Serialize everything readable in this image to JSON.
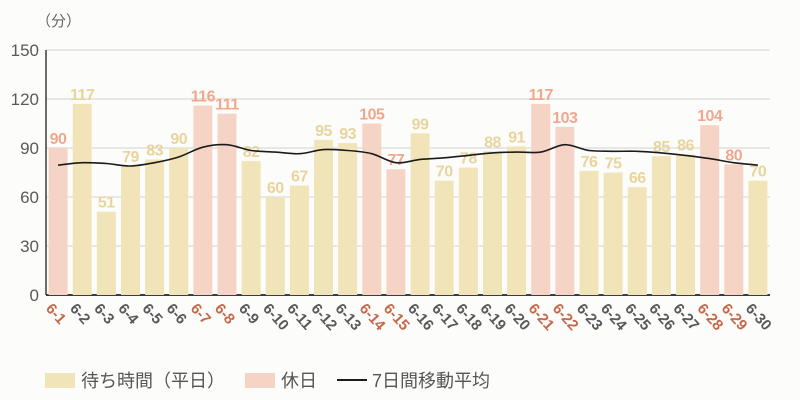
{
  "title": "（分）",
  "legend": {
    "weekday": "待ち時間（平日）",
    "holiday": "休日",
    "moving_average": "7日間移動平均"
  },
  "colors": {
    "background": "#fcfdfa",
    "weekday_bar": "#f2e4b9",
    "holiday_bar": "#f6d4c5",
    "weekday_value_label": "#e8d49c",
    "holiday_value_label": "#f1a78d",
    "weekday_tick": "#57585a",
    "holiday_tick": "#c5674b",
    "grid": "#d2d2d2",
    "axis": "#3c3c3c",
    "ma_line": "#1b1b1b",
    "tick_text": "#58595b",
    "title_text": "#666666"
  },
  "chart_data": {
    "type": "bar",
    "title": "（分）",
    "xlabel": "",
    "ylabel": "分",
    "ylim": [
      0,
      150
    ],
    "yticks": [
      0,
      30,
      60,
      90,
      120,
      150
    ],
    "grid": "horizontal",
    "legend_position": "bottom",
    "categories": [
      "6-1",
      "6-2",
      "6-3",
      "6-4",
      "6-5",
      "6-6",
      "6-7",
      "6-8",
      "6-9",
      "6-10",
      "6-11",
      "6-12",
      "6-13",
      "6-14",
      "6-15",
      "6-16",
      "6-17",
      "6-18",
      "6-19",
      "6-20",
      "6-21",
      "6-22",
      "6-23",
      "6-24",
      "6-25",
      "6-26",
      "6-27",
      "6-28",
      "6-29",
      "6-30"
    ],
    "series": [
      {
        "name": "待ち時間",
        "type": "bar",
        "values": [
          90,
          117,
          51,
          79,
          83,
          90,
          116,
          111,
          82,
          60,
          67,
          95,
          93,
          105,
          77,
          99,
          70,
          78,
          88,
          91,
          117,
          103,
          76,
          75,
          66,
          85,
          86,
          104,
          80,
          70
        ]
      },
      {
        "name": "7日間移動平均",
        "type": "line",
        "values": [
          79.5,
          81,
          80.5,
          79,
          81,
          84.5,
          90.5,
          92,
          88.5,
          87.5,
          86.5,
          89,
          88.5,
          86.5,
          81,
          83,
          84,
          85.5,
          87,
          87.5,
          87.5,
          92,
          88.5,
          88,
          88,
          87,
          85.5,
          83.5,
          81,
          79.5
        ]
      }
    ],
    "holidays": [
      "6-1",
      "6-7",
      "6-8",
      "6-14",
      "6-15",
      "6-21",
      "6-22",
      "6-28",
      "6-29"
    ]
  }
}
